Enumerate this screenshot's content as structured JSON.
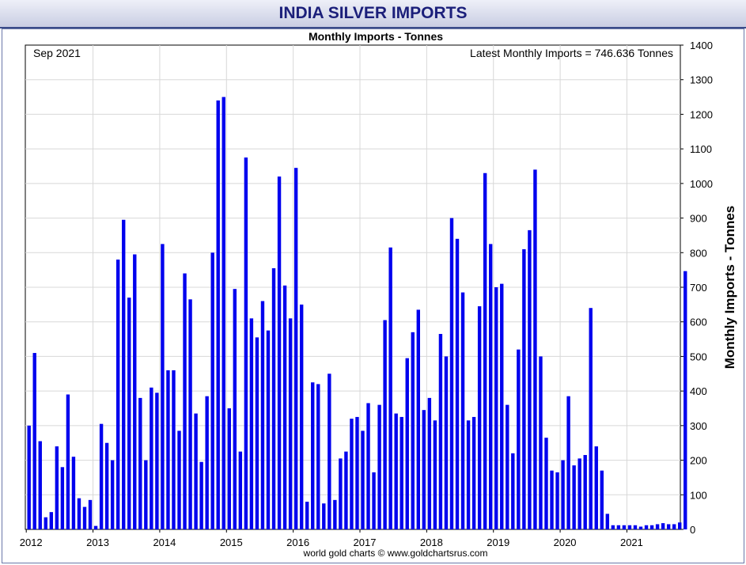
{
  "header": {
    "title": "INDIA SILVER IMPORTS"
  },
  "chart_data": {
    "type": "bar",
    "title": "Monthly Imports - Tonnes",
    "ylabel": "Monthly Imports - Tonnes",
    "xlabel": "",
    "ylim": [
      0,
      1400
    ],
    "yticks": [
      0,
      100,
      200,
      300,
      400,
      500,
      600,
      700,
      800,
      900,
      1000,
      1100,
      1200,
      1300,
      1400
    ],
    "xticks": [
      "2012",
      "2013",
      "2014",
      "2015",
      "2016",
      "2017",
      "2018",
      "2019",
      "2020",
      "2021"
    ],
    "grid": true,
    "bar_color": "#0000ee",
    "date_label": "Sep 2021",
    "latest_label": "Latest Monthly Imports = 746.636 Tonnes",
    "source": "world gold charts © www.goldchartsrus.com",
    "series": [
      {
        "values": [
          300,
          510,
          255,
          35,
          50,
          240,
          180,
          390,
          210,
          90,
          65,
          85,
          10,
          305,
          250,
          200,
          780,
          895,
          670,
          795,
          380,
          200,
          410,
          395,
          825,
          460,
          460,
          285,
          740,
          665,
          335,
          195,
          385,
          800,
          1240,
          1250,
          350,
          695,
          225,
          1075,
          610,
          555,
          660,
          575,
          755,
          1020,
          705,
          610,
          1045,
          650,
          80,
          425,
          420,
          75,
          450,
          85,
          205,
          225,
          320,
          325,
          285,
          365,
          165,
          360,
          605,
          815,
          335,
          325,
          495,
          570,
          635,
          345,
          380,
          315,
          565,
          500,
          900,
          840,
          685,
          315,
          325,
          645,
          1030,
          825,
          700,
          710,
          360,
          220,
          520,
          810,
          865,
          1040,
          500,
          265,
          170,
          165,
          200,
          385,
          185,
          205,
          215,
          640,
          240,
          170,
          45,
          12,
          12,
          12,
          12,
          12,
          8,
          12,
          12,
          15,
          18,
          15,
          15,
          20,
          746.636
        ]
      }
    ]
  }
}
